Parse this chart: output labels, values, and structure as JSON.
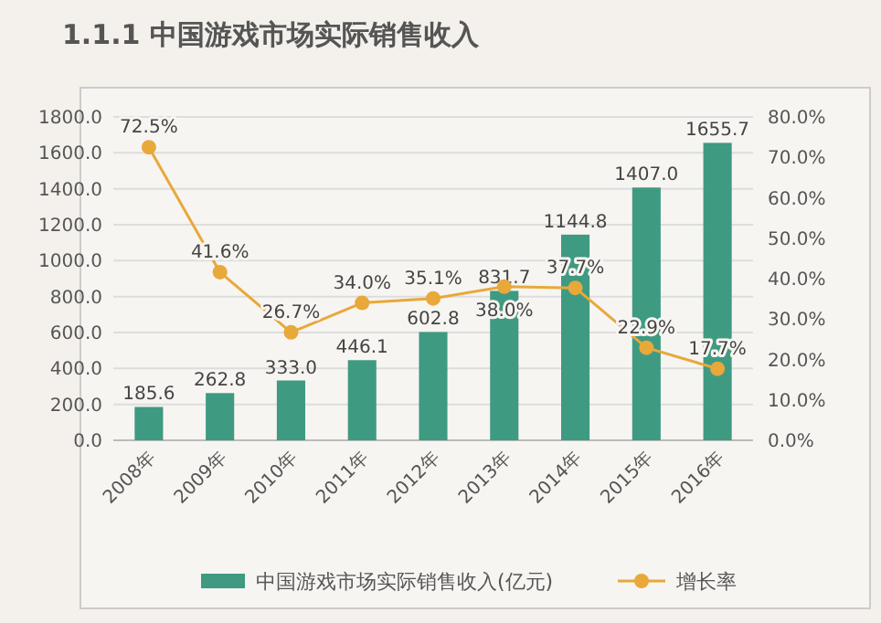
{
  "chart_data": {
    "type": "bar",
    "title": "1.1.1   中国游戏市场实际销售收入",
    "categories": [
      "2008年",
      "2009年",
      "2010年",
      "2011年",
      "2012年",
      "2013年",
      "2014年",
      "2015年",
      "2016年"
    ],
    "series": [
      {
        "name": "中国游戏市场实际销售收入(亿元)",
        "color": "#3f9a82",
        "values": [
          185.6,
          262.8,
          333.0,
          446.1,
          602.8,
          831.7,
          1144.8,
          1407.0,
          1655.7
        ],
        "value_labels": [
          "185.6",
          "262.8",
          "333.0",
          "446.1",
          "602.8",
          "831.7",
          "1144.8",
          "1407.0",
          "1655.7"
        ]
      },
      {
        "type": "line",
        "name": "增长率",
        "color": "#e8a83a",
        "axis": "y2",
        "marker": "circle",
        "values": [
          72.5,
          41.6,
          26.7,
          34.0,
          35.1,
          38.0,
          37.7,
          22.9,
          17.7
        ],
        "value_labels": [
          "72.5%",
          "41.6%",
          "26.7%",
          "34.0%",
          "35.1%",
          "38.0%",
          "37.7%",
          "22.9%",
          "17.7%"
        ]
      }
    ],
    "ylim": [
      0,
      1800
    ],
    "yticks": [
      {
        "value": 0,
        "label": "0.0"
      },
      {
        "value": 200,
        "label": "200.0"
      },
      {
        "value": 400,
        "label": "400.0"
      },
      {
        "value": 600,
        "label": "600.0"
      },
      {
        "value": 800,
        "label": "800.0"
      },
      {
        "value": 1000,
        "label": "1000.0"
      },
      {
        "value": 1200,
        "label": "1200.0"
      },
      {
        "value": 1400,
        "label": "1400.0"
      },
      {
        "value": 1600,
        "label": "1600.0"
      },
      {
        "value": 1800,
        "label": "1800.0"
      }
    ],
    "y2lim": [
      0,
      80
    ],
    "y2ticks": [
      {
        "value": 0,
        "label": "0.0%"
      },
      {
        "value": 10,
        "label": "10.0%"
      },
      {
        "value": 20,
        "label": "20.0%"
      },
      {
        "value": 30,
        "label": "30.0%"
      },
      {
        "value": 40,
        "label": "40.0%"
      },
      {
        "value": 50,
        "label": "50.0%"
      },
      {
        "value": 60,
        "label": "60.0%"
      },
      {
        "value": 70,
        "label": "70.0%"
      },
      {
        "value": 80,
        "label": "80.0%"
      }
    ],
    "grid": "y",
    "legend": "bottom"
  }
}
